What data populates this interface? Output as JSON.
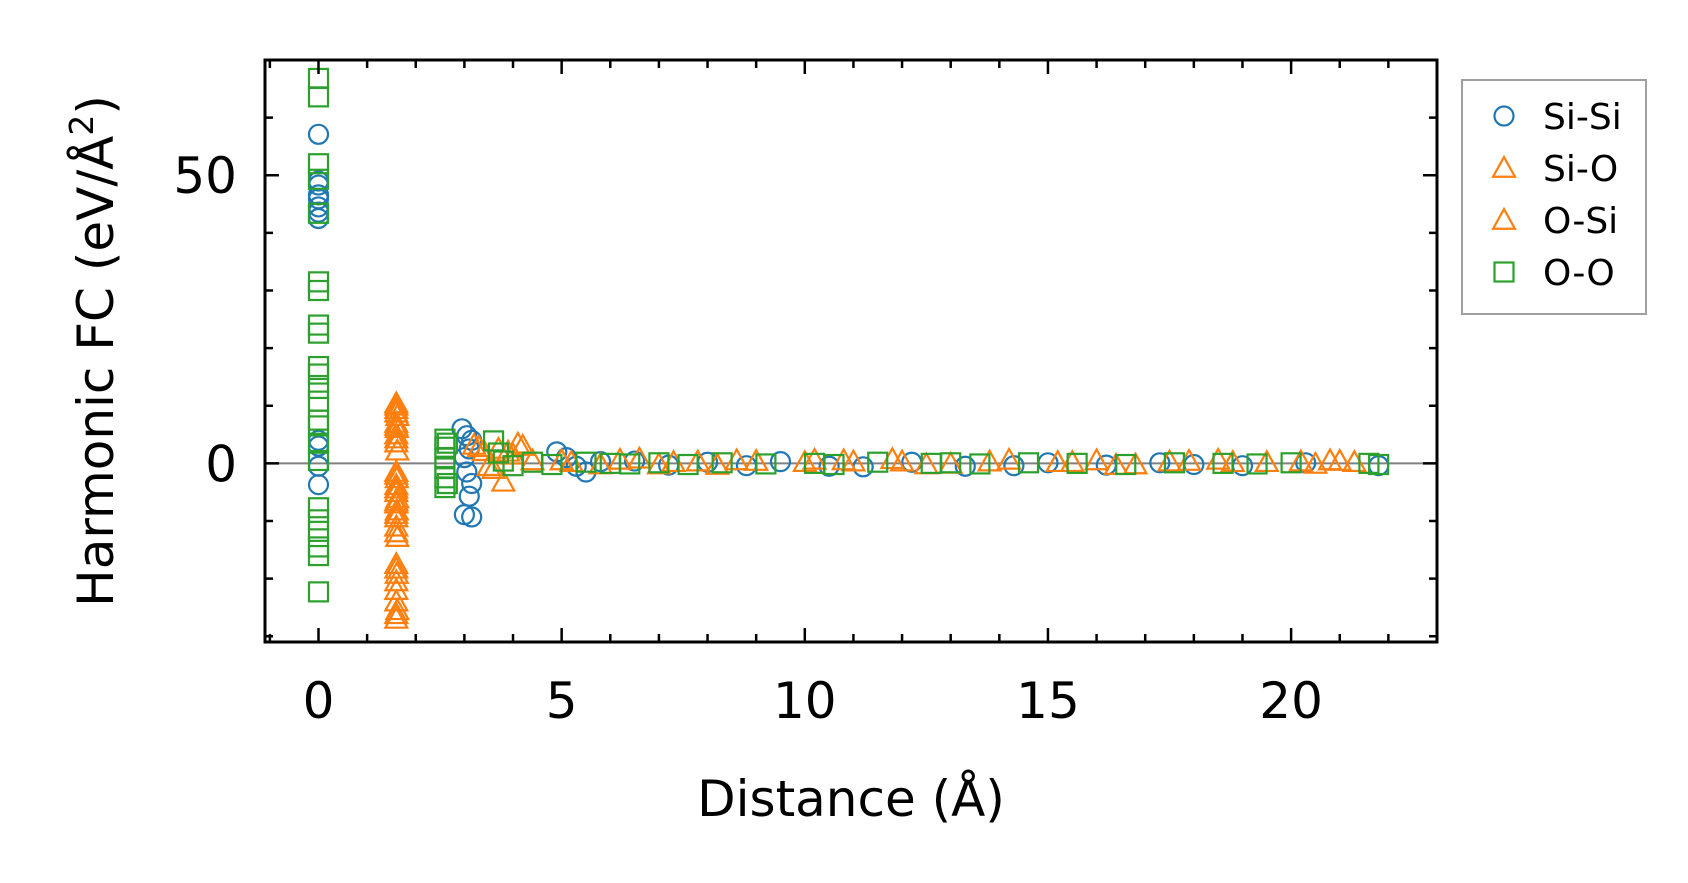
{
  "chart_data": {
    "type": "scatter",
    "xlabel": "Distance (Å)",
    "ylabel": "Harmonic FC (eV/Å",
    "ylabel_superscript": "2",
    "ylabel_suffix": ")",
    "xlim": [
      -1.1,
      23.0
    ],
    "ylim": [
      -31,
      70
    ],
    "xticks": [
      0,
      5,
      10,
      15,
      20
    ],
    "yticks": [
      0,
      50
    ],
    "xtick_labels": [
      "0",
      "5",
      "10",
      "15",
      "20"
    ],
    "ytick_labels": [
      "0",
      "50"
    ],
    "x_minor_step": 1,
    "y_minor_step": 10,
    "zero_line": true,
    "legend_position": "outside-right-top",
    "series": [
      {
        "name": "Si-Si",
        "marker": "circle",
        "color": "#1f77b4",
        "points": [
          [
            0.0,
            57.1
          ],
          [
            0.0,
            49.0
          ],
          [
            0.0,
            48.3
          ],
          [
            0.0,
            46.6
          ],
          [
            0.0,
            45.9
          ],
          [
            0.0,
            44.5
          ],
          [
            0.0,
            43.6
          ],
          [
            0.0,
            42.5
          ],
          [
            0.0,
            4.0
          ],
          [
            0.0,
            3.0
          ],
          [
            0.0,
            -0.5
          ],
          [
            0.0,
            -3.7
          ],
          [
            2.95,
            6.0
          ],
          [
            3.05,
            4.8
          ],
          [
            3.15,
            4.0
          ],
          [
            3.1,
            2.5
          ],
          [
            3.0,
            1.0
          ],
          [
            3.05,
            -1.5
          ],
          [
            3.15,
            -3.5
          ],
          [
            3.1,
            -5.7
          ],
          [
            3.0,
            -8.9
          ],
          [
            3.15,
            -9.3
          ],
          [
            4.9,
            2.0
          ],
          [
            5.1,
            1.0
          ],
          [
            5.3,
            -0.5
          ],
          [
            5.5,
            -1.5
          ],
          [
            5.8,
            0.3
          ],
          [
            6.5,
            0.4
          ],
          [
            7.2,
            -0.3
          ],
          [
            8.0,
            0.2
          ],
          [
            8.8,
            -0.4
          ],
          [
            9.5,
            0.3
          ],
          [
            10.5,
            -0.5
          ],
          [
            11.2,
            -0.6
          ],
          [
            12.2,
            0.2
          ],
          [
            13.3,
            -0.5
          ],
          [
            14.3,
            -0.4
          ],
          [
            15.0,
            0.1
          ],
          [
            16.2,
            -0.3
          ],
          [
            17.3,
            0.1
          ],
          [
            18.0,
            -0.2
          ],
          [
            19.0,
            -0.4
          ],
          [
            20.3,
            0.1
          ],
          [
            21.8,
            -0.4
          ]
        ]
      },
      {
        "name": "Si-O",
        "marker": "triangle",
        "color": "#ff7f0e",
        "points": [
          [
            1.6,
            10.4
          ],
          [
            1.6,
            9.4
          ],
          [
            1.62,
            8.2
          ],
          [
            1.6,
            7.0
          ],
          [
            1.61,
            6.1
          ],
          [
            1.6,
            5.0
          ],
          [
            1.6,
            3.6
          ],
          [
            1.62,
            2.2
          ],
          [
            1.6,
            -1.5
          ],
          [
            1.61,
            -2.6
          ],
          [
            1.6,
            -3.8
          ],
          [
            1.6,
            -5.0
          ],
          [
            1.62,
            -6.1
          ],
          [
            1.6,
            -7.0
          ],
          [
            1.61,
            -8.2
          ],
          [
            1.6,
            -9.4
          ],
          [
            1.6,
            -11.0
          ],
          [
            1.62,
            -12.8
          ],
          [
            1.6,
            -17.5
          ],
          [
            1.61,
            -19.2
          ],
          [
            1.6,
            -20.5
          ],
          [
            1.6,
            -24.0
          ],
          [
            1.62,
            -25.5
          ],
          [
            1.6,
            -27.0
          ],
          [
            3.2,
            3.2
          ],
          [
            3.4,
            2.1
          ],
          [
            3.6,
            -1.0
          ],
          [
            3.8,
            -3.2
          ],
          [
            3.7,
            2.5
          ],
          [
            4.0,
            1.5
          ],
          [
            4.2,
            3.0
          ],
          [
            4.4,
            0.5
          ],
          [
            5.0,
            0.5
          ],
          [
            5.8,
            -0.2
          ],
          [
            6.6,
            0.8
          ],
          [
            7.3,
            0.2
          ],
          [
            8.2,
            -0.3
          ],
          [
            9.0,
            0.4
          ],
          [
            10.2,
            0.6
          ],
          [
            11.0,
            0.3
          ],
          [
            11.8,
            0.7
          ],
          [
            12.5,
            -0.2
          ],
          [
            13.8,
            0.3
          ],
          [
            15.2,
            0.2
          ],
          [
            16.0,
            0.5
          ],
          [
            16.8,
            -0.2
          ],
          [
            17.9,
            0.4
          ],
          [
            18.8,
            0.2
          ],
          [
            20.2,
            0.3
          ],
          [
            20.8,
            0.5
          ],
          [
            21.3,
            0.2
          ]
        ]
      },
      {
        "name": "O-Si",
        "marker": "triangle",
        "color": "#ff7f0e",
        "points": [
          [
            1.6,
            10.0
          ],
          [
            1.6,
            8.8
          ],
          [
            1.6,
            6.5
          ],
          [
            1.6,
            4.3
          ],
          [
            1.6,
            -2.0
          ],
          [
            1.6,
            -4.4
          ],
          [
            1.6,
            -6.6
          ],
          [
            1.6,
            -8.8
          ],
          [
            1.6,
            -12.0
          ],
          [
            1.6,
            -18.3
          ],
          [
            1.6,
            -22.0
          ],
          [
            1.6,
            -26.2
          ],
          [
            3.3,
            2.8
          ],
          [
            3.5,
            -0.5
          ],
          [
            3.9,
            2.0
          ],
          [
            4.1,
            3.4
          ],
          [
            5.2,
            0.2
          ],
          [
            6.2,
            0.6
          ],
          [
            7.0,
            -0.2
          ],
          [
            7.8,
            0.3
          ],
          [
            8.6,
            0.5
          ],
          [
            10.0,
            0.2
          ],
          [
            10.8,
            0.5
          ],
          [
            12.0,
            0.3
          ],
          [
            13.0,
            -0.1
          ],
          [
            14.2,
            0.6
          ],
          [
            15.5,
            0.2
          ],
          [
            16.4,
            -0.3
          ],
          [
            17.5,
            0.3
          ],
          [
            18.5,
            0.6
          ],
          [
            19.5,
            0.2
          ],
          [
            20.5,
            -0.1
          ],
          [
            21.0,
            0.4
          ]
        ]
      },
      {
        "name": "O-O",
        "marker": "square",
        "color": "#2ca02c",
        "points": [
          [
            0.0,
            66.8
          ],
          [
            0.0,
            63.6
          ],
          [
            0.0,
            52.0
          ],
          [
            0.0,
            49.3
          ],
          [
            0.0,
            43.4
          ],
          [
            0.0,
            31.5
          ],
          [
            0.0,
            30.0
          ],
          [
            0.0,
            24.0
          ],
          [
            0.0,
            22.6
          ],
          [
            0.0,
            16.8
          ],
          [
            0.0,
            15.5
          ],
          [
            0.0,
            13.0
          ],
          [
            0.0,
            10.8
          ],
          [
            0.0,
            7.5
          ],
          [
            0.0,
            6.5
          ],
          [
            0.0,
            3.5
          ],
          [
            0.0,
            0.5
          ],
          [
            0.0,
            -7.7
          ],
          [
            0.0,
            -9.8
          ],
          [
            0.0,
            -11.8
          ],
          [
            0.0,
            -14.5
          ],
          [
            0.0,
            -16.0
          ],
          [
            0.0,
            -22.3
          ],
          [
            2.6,
            4.2
          ],
          [
            2.6,
            2.8
          ],
          [
            2.6,
            1.0
          ],
          [
            2.6,
            -0.8
          ],
          [
            2.6,
            -2.5
          ],
          [
            2.6,
            -4.2
          ],
          [
            2.65,
            3.5
          ],
          [
            2.65,
            -3.5
          ],
          [
            3.6,
            3.9
          ],
          [
            3.7,
            1.8
          ],
          [
            3.8,
            0.4
          ],
          [
            4.0,
            -0.4
          ],
          [
            4.4,
            0.2
          ],
          [
            4.8,
            -0.2
          ],
          [
            5.5,
            0.2
          ],
          [
            6.0,
            0.0
          ],
          [
            6.4,
            -0.1
          ],
          [
            7.0,
            0.1
          ],
          [
            7.6,
            -0.2
          ],
          [
            8.3,
            0.1
          ],
          [
            9.2,
            -0.1
          ],
          [
            10.2,
            0.0
          ],
          [
            10.6,
            -0.2
          ],
          [
            11.5,
            0.2
          ],
          [
            12.6,
            0.0
          ],
          [
            13.0,
            0.1
          ],
          [
            13.6,
            -0.1
          ],
          [
            14.6,
            0.1
          ],
          [
            15.6,
            0.0
          ],
          [
            16.6,
            -0.2
          ],
          [
            17.6,
            0.1
          ],
          [
            18.6,
            0.0
          ],
          [
            19.3,
            -0.1
          ],
          [
            20.0,
            0.1
          ],
          [
            21.6,
            0.0
          ],
          [
            21.8,
            -0.2
          ]
        ]
      }
    ]
  }
}
